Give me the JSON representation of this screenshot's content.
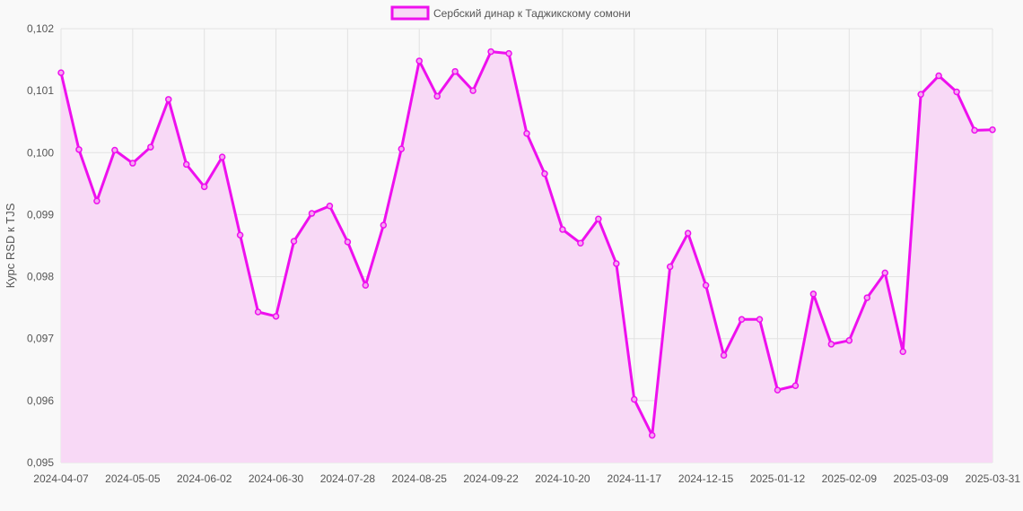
{
  "chart_data": {
    "type": "line",
    "ylabel": "Курс RSD к TJS",
    "ylim": [
      0.095,
      0.102
    ],
    "y_ticks": [
      "0,102",
      "0,101",
      "0,100",
      "0,099",
      "0,098",
      "0,097",
      "0,096",
      "0,095"
    ],
    "y_tick_values": [
      0.102,
      0.101,
      0.1,
      0.099,
      0.098,
      0.097,
      0.096,
      0.095
    ],
    "x_ticks": [
      "2024-04-07",
      "2024-05-05",
      "2024-06-02",
      "2024-06-30",
      "2024-07-28",
      "2024-08-25",
      "2024-09-22",
      "2024-10-20",
      "2024-11-17",
      "2024-12-15",
      "2025-01-12",
      "2025-02-09",
      "2025-03-09",
      "2025-03-31"
    ],
    "x_tick_index": [
      0,
      4,
      8,
      12,
      16,
      20,
      24,
      28,
      32,
      36,
      40,
      44,
      48,
      52
    ],
    "grid": true,
    "legend_position": "top-center",
    "colors": {
      "line": "#ee10ee",
      "fill": "#f8d9f6",
      "grid": "#e2e2e2",
      "background": "#f9f9f9"
    },
    "series": [
      {
        "name": "Сербский динар к Таджикскому сомони",
        "values": [
          0.10129,
          0.10005,
          0.09922,
          0.10004,
          0.09983,
          0.10009,
          0.10086,
          0.09981,
          0.09945,
          0.09993,
          0.09867,
          0.09743,
          0.09736,
          0.09857,
          0.09902,
          0.09914,
          0.09856,
          0.09786,
          0.09883,
          0.10006,
          0.10148,
          0.10091,
          0.10131,
          0.101,
          0.10163,
          0.1016,
          0.10031,
          0.09966,
          0.09876,
          0.09854,
          0.09893,
          0.09821,
          0.09602,
          0.09544,
          0.09816,
          0.0987,
          0.09786,
          0.09673,
          0.09731,
          0.09731,
          0.09617,
          0.09624,
          0.09772,
          0.09691,
          0.09697,
          0.09766,
          0.09806,
          0.09679,
          0.10094,
          0.10124,
          0.10098,
          0.10036,
          0.10037
        ]
      }
    ]
  }
}
